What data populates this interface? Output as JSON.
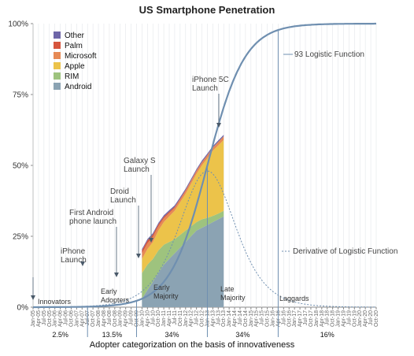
{
  "chart_data": {
    "type": "area",
    "title": "US Smartphone Penetration",
    "xlabel": "Adopter categorization on the basis of innovativeness",
    "ylabel": "",
    "ylim": [
      0,
      100
    ],
    "yticks": [
      "0%",
      "25%",
      "50%",
      "75%",
      "100%"
    ],
    "x_start": "Jan-05",
    "x_end": "Oct-20",
    "x_ticks": [
      "Jan-05",
      "Apr-05",
      "Jul-05",
      "Oct-05",
      "Jan-06",
      "Apr-06",
      "Jul-06",
      "Oct-06",
      "Jan-07",
      "Apr-07",
      "Jul-07",
      "Oct-07",
      "Jan-08",
      "Apr-08",
      "Jul-08",
      "Oct-08",
      "Jan-09",
      "Apr-09",
      "Jul-09",
      "Oct-09",
      "Jan-10",
      "Apr-10",
      "Jul-10",
      "Oct-10",
      "Jan-11",
      "Apr-11",
      "Jul-11",
      "Oct-11",
      "Jan-12",
      "Apr-12",
      "Jul-12",
      "Oct-12",
      "Jan-13",
      "Apr-13",
      "Jul-13",
      "Oct-13",
      "Jan-14",
      "Apr-14",
      "Jul-14",
      "Oct-14",
      "Jan-15",
      "Apr-15",
      "Jul-15",
      "Oct-15",
      "Jan-16",
      "Apr-16",
      "Jul-16",
      "Oct-16",
      "Jan-17",
      "Apr-17",
      "Jul-17",
      "Oct-17",
      "Jan-18",
      "Apr-18",
      "Jul-18",
      "Oct-18",
      "Jan-19",
      "Apr-19",
      "Jul-19",
      "Oct-19",
      "Jan-20",
      "Apr-20",
      "Jul-20",
      "Oct-20"
    ],
    "legend": [
      "Other",
      "Palm",
      "Microsoft",
      "Apple",
      "RIM",
      "Android"
    ],
    "series": [
      {
        "name": "Android",
        "color": "#8ba3b3",
        "values": [
          {
            "x": "Jan-10",
            "y": 3
          },
          {
            "x": "Apr-10",
            "y": 6
          },
          {
            "x": "Jul-10",
            "y": 9
          },
          {
            "x": "Oct-10",
            "y": 12
          },
          {
            "x": "Jan-11",
            "y": 15
          },
          {
            "x": "Apr-11",
            "y": 17
          },
          {
            "x": "Jul-11",
            "y": 19
          },
          {
            "x": "Oct-11",
            "y": 21
          },
          {
            "x": "Jan-12",
            "y": 23
          },
          {
            "x": "Apr-12",
            "y": 25
          },
          {
            "x": "Jul-12",
            "y": 27
          },
          {
            "x": "Oct-12",
            "y": 28
          },
          {
            "x": "Jan-13",
            "y": 29
          },
          {
            "x": "Apr-13",
            "y": 30
          },
          {
            "x": "Jul-13",
            "y": 31
          },
          {
            "x": "Oct-13",
            "y": 32
          }
        ]
      },
      {
        "name": "RIM",
        "color": "#9ec37e",
        "values": [
          {
            "x": "Jan-10",
            "y": 9
          },
          {
            "x": "Apr-10",
            "y": 9
          },
          {
            "x": "Jul-10",
            "y": 8
          },
          {
            "x": "Oct-10",
            "y": 8
          },
          {
            "x": "Jan-11",
            "y": 7
          },
          {
            "x": "Apr-11",
            "y": 6
          },
          {
            "x": "Jul-11",
            "y": 5
          },
          {
            "x": "Oct-11",
            "y": 4.5
          },
          {
            "x": "Jan-12",
            "y": 4
          },
          {
            "x": "Apr-12",
            "y": 3.5
          },
          {
            "x": "Jul-12",
            "y": 3
          },
          {
            "x": "Oct-12",
            "y": 3
          },
          {
            "x": "Jan-13",
            "y": 2.5
          },
          {
            "x": "Apr-13",
            "y": 2.2
          },
          {
            "x": "Jul-13",
            "y": 2
          },
          {
            "x": "Oct-13",
            "y": 2
          }
        ]
      },
      {
        "name": "Apple",
        "color": "#ecc34a",
        "values": [
          {
            "x": "Jan-10",
            "y": 5
          },
          {
            "x": "Apr-10",
            "y": 5.5
          },
          {
            "x": "Jul-10",
            "y": 6
          },
          {
            "x": "Oct-10",
            "y": 7
          },
          {
            "x": "Jan-11",
            "y": 8
          },
          {
            "x": "Apr-11",
            "y": 9
          },
          {
            "x": "Jul-11",
            "y": 10
          },
          {
            "x": "Oct-11",
            "y": 11.5
          },
          {
            "x": "Jan-12",
            "y": 13
          },
          {
            "x": "Apr-12",
            "y": 15
          },
          {
            "x": "Jul-12",
            "y": 17
          },
          {
            "x": "Oct-12",
            "y": 19
          },
          {
            "x": "Jan-13",
            "y": 21
          },
          {
            "x": "Apr-13",
            "y": 23
          },
          {
            "x": "Jul-13",
            "y": 24
          },
          {
            "x": "Oct-13",
            "y": 25
          }
        ]
      },
      {
        "name": "Microsoft",
        "color": "#e68a55",
        "values": [
          {
            "x": "Jan-10",
            "y": 2
          },
          {
            "x": "Apr-10",
            "y": 2
          },
          {
            "x": "Jul-10",
            "y": 1.8
          },
          {
            "x": "Oct-10",
            "y": 1.5
          },
          {
            "x": "Jan-11",
            "y": 1.3
          },
          {
            "x": "Apr-11",
            "y": 1.2
          },
          {
            "x": "Jul-11",
            "y": 1
          },
          {
            "x": "Oct-11",
            "y": 1
          },
          {
            "x": "Jan-12",
            "y": 1
          },
          {
            "x": "Apr-12",
            "y": 1
          },
          {
            "x": "Jul-12",
            "y": 1
          },
          {
            "x": "Oct-12",
            "y": 1
          },
          {
            "x": "Jan-13",
            "y": 1
          },
          {
            "x": "Apr-13",
            "y": 1
          },
          {
            "x": "Jul-13",
            "y": 1.2
          },
          {
            "x": "Oct-13",
            "y": 1.2
          }
        ]
      },
      {
        "name": "Palm",
        "color": "#d6553d",
        "values": [
          {
            "x": "Jan-10",
            "y": 1
          },
          {
            "x": "Apr-10",
            "y": 1
          },
          {
            "x": "Jul-10",
            "y": 0.8
          },
          {
            "x": "Oct-10",
            "y": 0.7
          },
          {
            "x": "Jan-11",
            "y": 0.6
          },
          {
            "x": "Apr-11",
            "y": 0.5
          },
          {
            "x": "Jul-11",
            "y": 0.4
          },
          {
            "x": "Oct-11",
            "y": 0.3
          },
          {
            "x": "Jan-12",
            "y": 0.3
          },
          {
            "x": "Apr-12",
            "y": 0.2
          },
          {
            "x": "Jul-12",
            "y": 0.2
          },
          {
            "x": "Oct-12",
            "y": 0.2
          },
          {
            "x": "Jan-13",
            "y": 0.2
          },
          {
            "x": "Apr-13",
            "y": 0.1
          },
          {
            "x": "Jul-13",
            "y": 0.1
          },
          {
            "x": "Oct-13",
            "y": 0.1
          }
        ]
      },
      {
        "name": "Other",
        "color": "#6e66a8",
        "values": [
          {
            "x": "Jan-10",
            "y": 0.5
          },
          {
            "x": "Apr-10",
            "y": 0.5
          },
          {
            "x": "Jul-10",
            "y": 0.5
          },
          {
            "x": "Oct-10",
            "y": 0.5
          },
          {
            "x": "Jan-11",
            "y": 0.5
          },
          {
            "x": "Apr-11",
            "y": 0.5
          },
          {
            "x": "Jul-11",
            "y": 0.5
          },
          {
            "x": "Oct-11",
            "y": 0.5
          },
          {
            "x": "Jan-12",
            "y": 0.5
          },
          {
            "x": "Apr-12",
            "y": 0.5
          },
          {
            "x": "Jul-12",
            "y": 0.5
          },
          {
            "x": "Oct-12",
            "y": 0.5
          },
          {
            "x": "Jan-13",
            "y": 0.5
          },
          {
            "x": "Apr-13",
            "y": 0.5
          },
          {
            "x": "Jul-13",
            "y": 0.5
          },
          {
            "x": "Oct-13",
            "y": 0.5
          }
        ]
      }
    ],
    "logistic": {
      "label": "93 Logistic Function",
      "derivative_label": "Derivative of Logistic Function",
      "ceiling": 100,
      "midpoint": "Jan-13",
      "rate_per_quarter": 0.29,
      "line_color": "#6f8fb0"
    },
    "annotations": [
      {
        "text": "iPhone\nLaunch",
        "x": "Jul-07",
        "y": 12
      },
      {
        "text": "First Android\nphone launch",
        "x": "Oct-08",
        "y": 17
      },
      {
        "text": "Droid\nLaunch",
        "x": "Oct-09",
        "y": 25
      },
      {
        "text": "Galaxy S\nLaunch",
        "x": "Jul-10",
        "y": 32
      },
      {
        "text": "iPhone 5C\nLaunch",
        "x": "Sep-13",
        "y": 58
      }
    ],
    "adopter_categories": [
      {
        "name": "Innovators",
        "share": "2.5%"
      },
      {
        "name": "Early\nAdopters",
        "share": "13.5%"
      },
      {
        "name": "Early\nMajority",
        "share": "34%"
      },
      {
        "name": "Late\nMajority",
        "share": "34%"
      },
      {
        "name": "Laggards",
        "share": "16%"
      }
    ],
    "category_boundaries": [
      "Jul-07",
      "Oct-09",
      "Jan-13",
      "Apr-16"
    ]
  }
}
